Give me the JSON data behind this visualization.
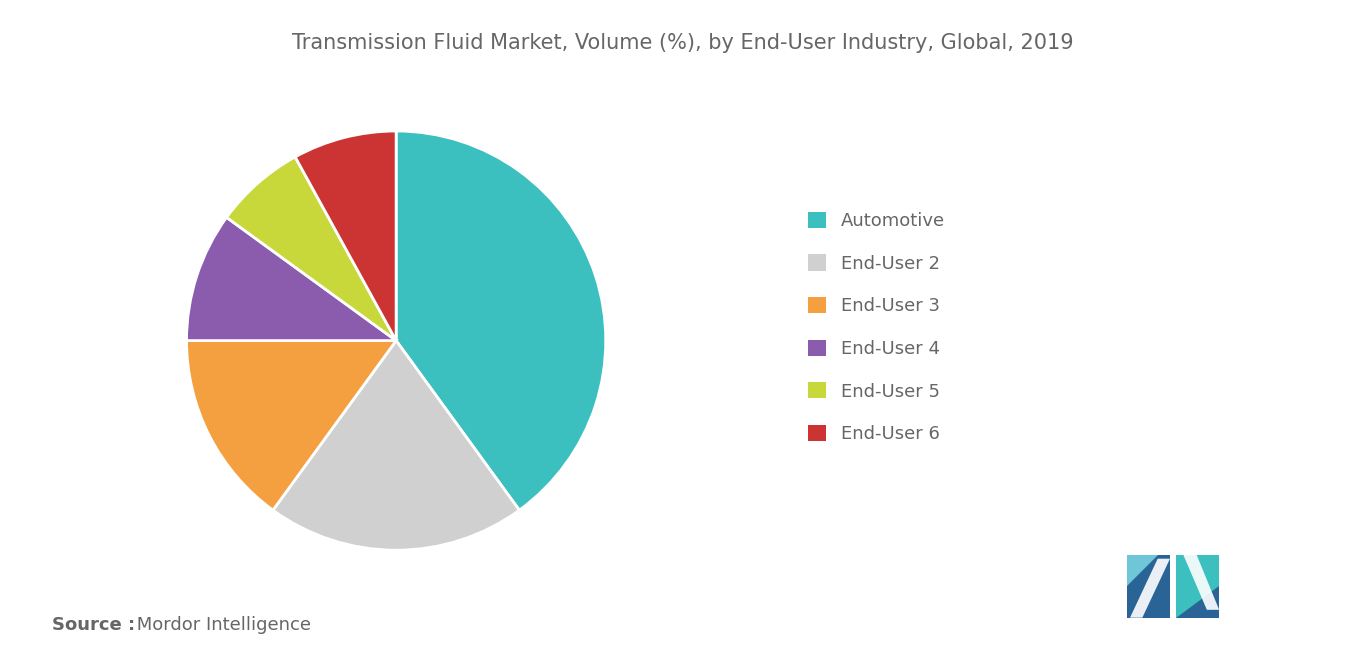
{
  "title": "Transmission Fluid Market, Volume (%), by End-User Industry, Global, 2019",
  "segments": [
    "Automotive",
    "End-User 2",
    "End-User 3",
    "End-User 4",
    "End-User 5",
    "End-User 6"
  ],
  "values": [
    40,
    20,
    15,
    10,
    7,
    8
  ],
  "colors": [
    "#3BBFBF",
    "#D0D0D0",
    "#F5A040",
    "#8B5BAE",
    "#C8D83A",
    "#CC3333"
  ],
  "legend_labels": [
    "Automotive",
    "End-User 2",
    "End-User 3",
    "End-User 4",
    "End-User 5",
    "End-User 6"
  ],
  "source_bold": "Source :",
  "source_normal": " Mordor Intelligence",
  "background_color": "#FFFFFF",
  "title_fontsize": 15,
  "legend_fontsize": 13,
  "source_fontsize": 13,
  "text_color": "#666666",
  "pie_startangle": 90,
  "pie_counterclock": false,
  "logo_color1": "#3BBFBF",
  "logo_color2": "#2A6496",
  "logo_color3": "#5BADD0"
}
